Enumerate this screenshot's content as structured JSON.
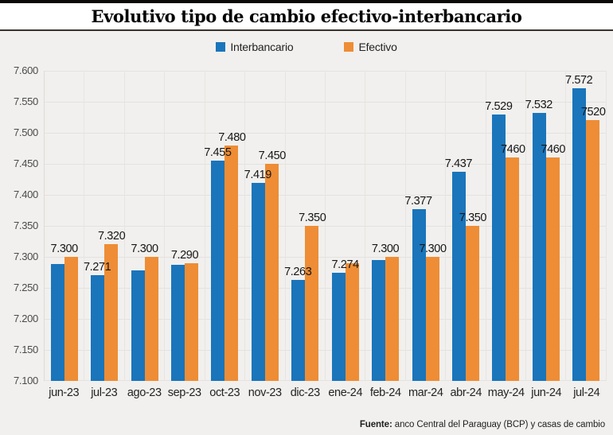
{
  "header": {
    "title": "Evolutivo tipo de cambio efectivo-interbancario"
  },
  "footer": {
    "source_label": "Fuente:",
    "source_text": " anco Central del Paraguay (BCP) y casas de cambio"
  },
  "chart_data": {
    "type": "bar",
    "title": "Evolutivo tipo de cambio efectivo-interbancario",
    "categories": [
      "jun-23",
      "jul-23",
      "ago-23",
      "sep-23",
      "oct-23",
      "nov-23",
      "dic-23",
      "ene-24",
      "feb-24",
      "mar-24",
      "abr-24",
      "may-24",
      "jun-24",
      "jul-24"
    ],
    "series": [
      {
        "name": "Interbancario",
        "color": "#1a75bb",
        "values": [
          7288,
          7271,
          7278,
          7287,
          7455,
          7419,
          7263,
          7274,
          7295,
          7377,
          7437,
          7529,
          7532,
          7572
        ],
        "labels": [
          "",
          "7.271",
          "",
          "",
          "7.455",
          "7.419",
          "7.263",
          "7.274",
          "",
          "7.377",
          "7.437",
          "7.529",
          "7.532",
          "7.572"
        ]
      },
      {
        "name": "Efectivo",
        "color": "#ee8d35",
        "values": [
          7300,
          7320,
          7300,
          7290,
          7480,
          7450,
          7350,
          7290,
          7300,
          7300,
          7350,
          7460,
          7460,
          7520
        ],
        "labels": [
          "7.300",
          "7.320",
          "7.300",
          "7.290",
          "7.480",
          "7.450",
          "7.350",
          "",
          "7.300",
          "7.300",
          "7.350",
          "7460",
          "7460",
          "7520"
        ]
      }
    ],
    "ylim": [
      7100,
      7600
    ],
    "ytick_step": 50,
    "yticks": [
      "7.100",
      "7.150",
      "7.200",
      "7.250",
      "7.300",
      "7.350",
      "7.400",
      "7.450",
      "7.500",
      "7.550",
      "7.600"
    ],
    "grid": true,
    "legend_position": "top"
  }
}
